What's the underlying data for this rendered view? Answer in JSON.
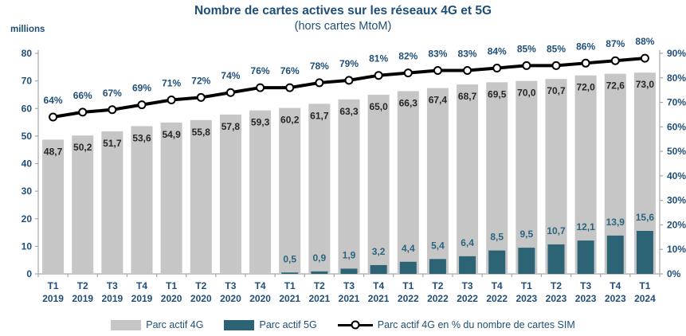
{
  "title": {
    "line1": "Nombre de cartes actives sur les réseaux 4G et 5G",
    "line2": "(hors cartes MtoM)"
  },
  "colors": {
    "text_blue": "#1F4E79",
    "bar_4g": "#C6C6C6",
    "bar_5g": "#2C6476",
    "label_4g": "#262626",
    "label_5g": "#2A647E",
    "axis": "#A6A6A6",
    "line": "#000000",
    "marker_fill": "#FFFFFF"
  },
  "legend": {
    "items": [
      {
        "label": "Parc actif 4G",
        "symbol": "gray-swatch"
      },
      {
        "label": "Parc actif 5G",
        "symbol": "teal-swatch"
      },
      {
        "label": "Parc actif 4G en % du nombre de cartes SIM",
        "symbol": "line-marker"
      }
    ]
  },
  "chart_data": {
    "type": "bar+line",
    "title": "Nombre de cartes actives sur les réseaux 4G et 5G (hors cartes MtoM)",
    "unit_label": "millions",
    "grid": "off",
    "legend_position": "bottom",
    "categories": [
      {
        "q": "T1",
        "y": "2019"
      },
      {
        "q": "T2",
        "y": "2019"
      },
      {
        "q": "T3",
        "y": "2019"
      },
      {
        "q": "T4",
        "y": "2019"
      },
      {
        "q": "T1",
        "y": "2020"
      },
      {
        "q": "T2",
        "y": "2020"
      },
      {
        "q": "T3",
        "y": "2020"
      },
      {
        "q": "T4",
        "y": "2020"
      },
      {
        "q": "T1",
        "y": "2021"
      },
      {
        "q": "T2",
        "y": "2021"
      },
      {
        "q": "T3",
        "y": "2021"
      },
      {
        "q": "T4",
        "y": "2021"
      },
      {
        "q": "T1",
        "y": "2022"
      },
      {
        "q": "T2",
        "y": "2022"
      },
      {
        "q": "T3",
        "y": "2022"
      },
      {
        "q": "T4",
        "y": "2022"
      },
      {
        "q": "T1",
        "y": "2023"
      },
      {
        "q": "T2",
        "y": "2023"
      },
      {
        "q": "T3",
        "y": "2023"
      },
      {
        "q": "T4",
        "y": "2023"
      },
      {
        "q": "T1",
        "y": "2024"
      }
    ],
    "left_axis": {
      "min": 0,
      "max": 80,
      "step": 10
    },
    "right_axis": {
      "min": 0,
      "max": 90,
      "step": 10,
      "suffix": "%"
    },
    "series": [
      {
        "name": "Parc actif 4G",
        "type": "bar",
        "axis": "left",
        "values": [
          48.7,
          50.2,
          51.7,
          53.6,
          54.9,
          55.8,
          57.8,
          59.3,
          60.2,
          61.7,
          63.3,
          65.0,
          66.3,
          67.4,
          68.7,
          69.5,
          70.0,
          70.7,
          72.0,
          72.6,
          73.0
        ],
        "labels": [
          "48,7",
          "50,2",
          "51,7",
          "53,6",
          "54,9",
          "55,8",
          "57,8",
          "59,3",
          "60,2",
          "61,7",
          "63,3",
          "65,0",
          "66,3",
          "67,4",
          "68,7",
          "69,5",
          "70,0",
          "70,7",
          "72,0",
          "72,6",
          "73,0"
        ]
      },
      {
        "name": "Parc actif 5G",
        "type": "bar",
        "axis": "left",
        "values": [
          null,
          null,
          null,
          null,
          null,
          null,
          null,
          null,
          0.5,
          0.9,
          1.9,
          3.2,
          4.4,
          5.4,
          6.4,
          8.5,
          9.5,
          10.7,
          12.1,
          13.9,
          15.6
        ],
        "labels": [
          null,
          null,
          null,
          null,
          null,
          null,
          null,
          null,
          "0,5",
          "0,9",
          "1,9",
          "3,2",
          "4,4",
          "5,4",
          "6,4",
          "8,5",
          "9,5",
          "10,7",
          "12,1",
          "13,9",
          "15,6"
        ]
      },
      {
        "name": "Parc actif 4G en % du nombre de cartes SIM",
        "type": "line",
        "axis": "right",
        "values": [
          64,
          66,
          67,
          69,
          71,
          72,
          74,
          76,
          76,
          78,
          79,
          81,
          82,
          83,
          83,
          84,
          85,
          85,
          86,
          87,
          88
        ],
        "labels": [
          "64%",
          "66%",
          "67%",
          "69%",
          "71%",
          "72%",
          "74%",
          "76%",
          "76%",
          "78%",
          "79%",
          "81%",
          "82%",
          "83%",
          "83%",
          "84%",
          "85%",
          "85%",
          "86%",
          "87%",
          "88%"
        ]
      }
    ]
  }
}
